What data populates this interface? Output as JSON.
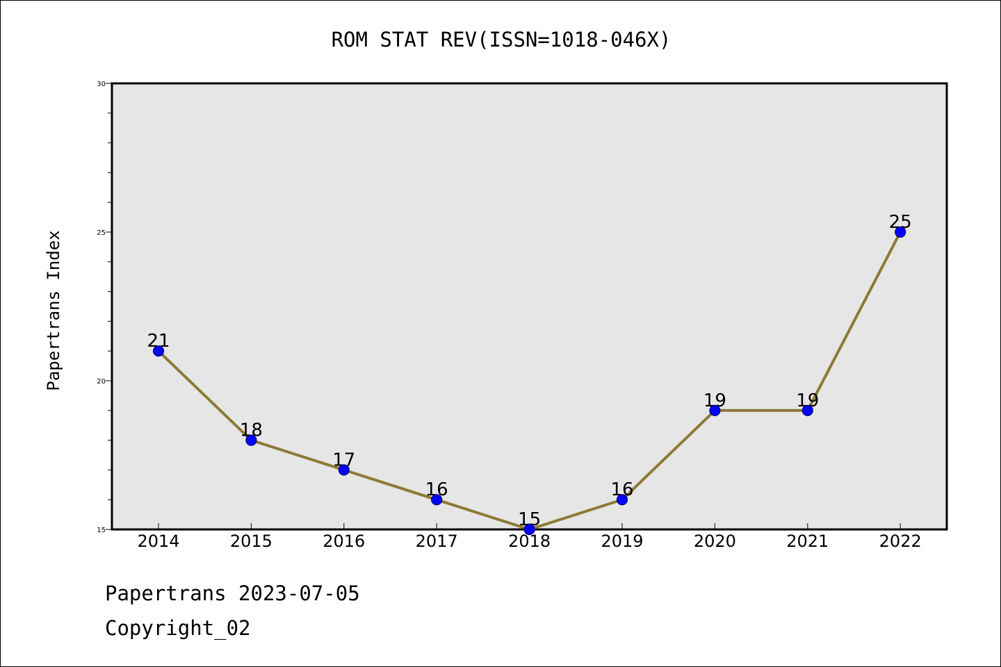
{
  "chart_data": {
    "type": "line",
    "title": "ROM STAT REV(ISSN=1018-046X)",
    "ylabel": "Papertrans Index",
    "xlabel": "",
    "categories": [
      "2014",
      "2015",
      "2016",
      "2017",
      "2018",
      "2019",
      "2020",
      "2021",
      "2022"
    ],
    "values": [
      21,
      18,
      17,
      16,
      15,
      16,
      19,
      19,
      25
    ],
    "ylim": [
      15,
      30
    ],
    "y_ticks": [
      15,
      20,
      25,
      30
    ],
    "y_minor_step": 1,
    "grid": false,
    "legend": "none",
    "data_labels": true,
    "colors": {
      "line": "#8c7a35",
      "marker_fill": "#0000ff",
      "marker_edge": "#000080",
      "plot_background": "#e6e6e6"
    }
  },
  "footer": {
    "line1": "Papertrans 2023-07-05",
    "line2": "Copyright_02"
  }
}
